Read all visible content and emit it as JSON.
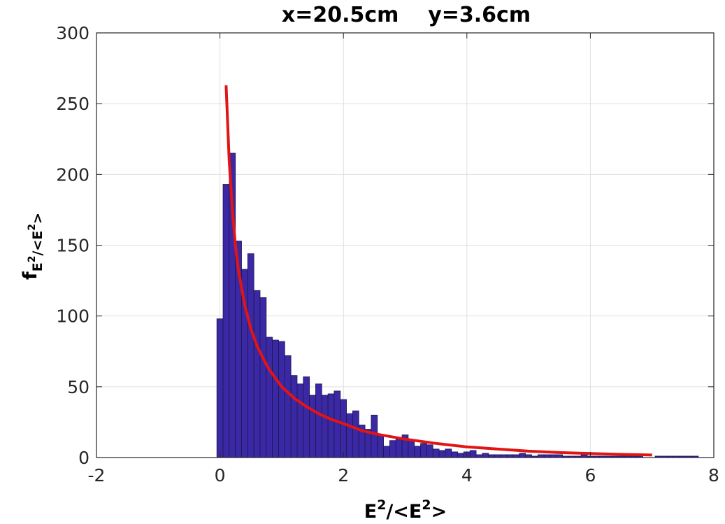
{
  "chart_data": {
    "type": "bar",
    "title": "x=20.5cm    y=3.6cm",
    "xlabel": {
      "base": "E",
      "sup": "2",
      "mid": "/<E",
      "sup2": "2",
      "end": ">"
    },
    "ylabel": {
      "base": "f",
      "sub": "E",
      "subsup": "2",
      "subrest": "/<E",
      "subsup2": "2",
      "subend": ">"
    },
    "xlim": [
      -2,
      8
    ],
    "ylim": [
      0,
      300
    ],
    "xticks": [
      -2,
      0,
      2,
      4,
      6,
      8
    ],
    "yticks": [
      0,
      50,
      100,
      150,
      200,
      250,
      300
    ],
    "grid": true,
    "bar_color": "#3b28a4",
    "bar_edge": "#1a1a4d",
    "bin_width": 0.1,
    "histogram": {
      "bin_left_edges": [
        -0.05,
        0.05,
        0.15,
        0.25,
        0.35,
        0.45,
        0.55,
        0.65,
        0.75,
        0.85,
        0.95,
        1.05,
        1.15,
        1.25,
        1.35,
        1.45,
        1.55,
        1.65,
        1.75,
        1.85,
        1.95,
        2.05,
        2.15,
        2.25,
        2.35,
        2.45,
        2.55,
        2.65,
        2.75,
        2.85,
        2.95,
        3.05,
        3.15,
        3.25,
        3.35,
        3.45,
        3.55,
        3.65,
        3.75,
        3.85,
        3.95,
        4.05,
        4.15,
        4.25,
        4.35,
        4.45,
        4.55,
        4.65,
        4.75,
        4.85,
        4.95,
        5.05,
        5.15,
        5.25,
        5.35,
        5.45,
        5.55,
        5.65,
        5.75,
        5.85,
        5.95,
        6.05,
        6.15,
        6.25,
        6.35,
        6.45,
        6.55,
        6.65,
        6.75,
        6.85,
        6.95,
        7.05,
        7.15,
        7.25,
        7.35,
        7.45,
        7.55,
        7.65,
        7.75
      ],
      "counts": [
        98,
        193,
        215,
        153,
        133,
        144,
        118,
        113,
        85,
        83,
        82,
        72,
        58,
        52,
        57,
        44,
        52,
        44,
        45,
        47,
        41,
        31,
        33,
        23,
        20,
        30,
        16,
        8,
        12,
        14,
        16,
        12,
        8,
        10,
        9,
        6,
        5,
        6,
        4,
        3,
        4,
        5,
        2,
        3,
        2,
        2,
        2,
        2,
        2,
        3,
        2,
        1,
        2,
        2,
        2,
        2,
        1,
        1,
        1,
        2,
        1,
        1,
        1,
        1,
        1,
        1,
        1,
        1,
        1,
        0,
        0,
        1,
        1,
        1,
        1,
        1,
        1,
        1,
        0
      ]
    },
    "fit_curve": {
      "color": "#e21414",
      "x": [
        0.1,
        0.15,
        0.2,
        0.25,
        0.3,
        0.4,
        0.5,
        0.6,
        0.7,
        0.8,
        1.0,
        1.2,
        1.4,
        1.6,
        1.8,
        2.0,
        2.3,
        2.6,
        3.0,
        3.5,
        4.0,
        4.5,
        5.0,
        5.5,
        6.0,
        6.5,
        7.0
      ],
      "y": [
        263,
        210,
        175,
        150,
        132,
        108,
        91,
        79,
        70,
        62,
        50,
        42,
        36,
        31,
        27,
        24,
        19,
        16,
        13,
        10,
        7.5,
        6,
        4.5,
        3.5,
        2.8,
        2.2,
        1.8
      ]
    }
  }
}
